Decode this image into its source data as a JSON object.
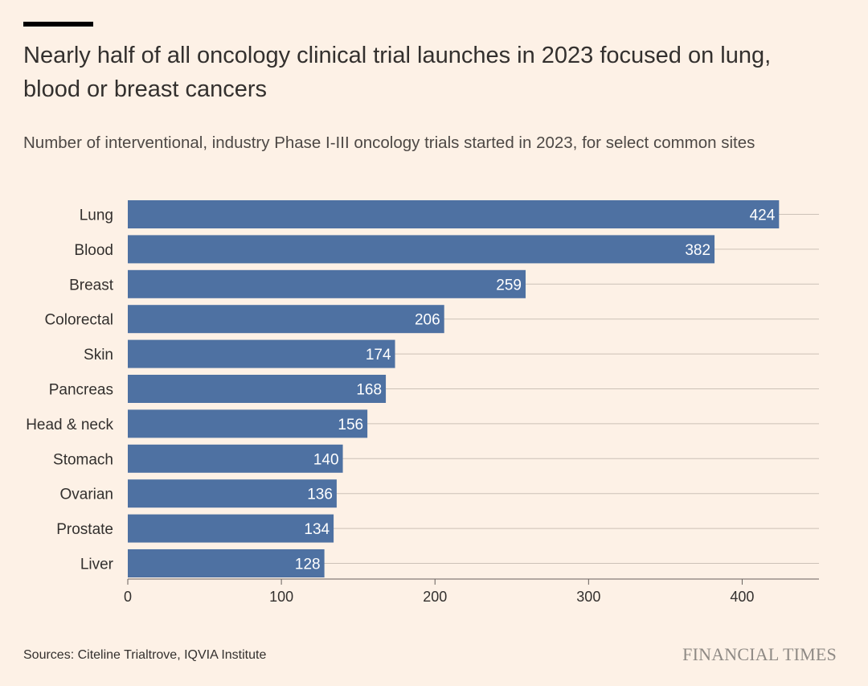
{
  "header": {
    "title": "Nearly half of all oncology clinical trial launches in 2023 focused on lung, blood or breast cancers",
    "subtitle": "Number of interventional, industry Phase I-III oncology trials started in 2023, for select common sites"
  },
  "footer": {
    "source": "Sources: Citeline Trialtrove, IQVIA Institute",
    "brand": "FINANCIAL TIMES"
  },
  "colors": {
    "bar": "#4e71a2",
    "gridline": "#ccc1b7",
    "background": "#fdf1e6",
    "label_on_bar": "#ffffff"
  },
  "chart_data": {
    "type": "bar",
    "orientation": "horizontal",
    "categories": [
      "Lung",
      "Blood",
      "Breast",
      "Colorectal",
      "Skin",
      "Pancreas",
      "Head & neck",
      "Stomach",
      "Ovarian",
      "Prostate",
      "Liver"
    ],
    "values": [
      424,
      382,
      259,
      206,
      174,
      168,
      156,
      140,
      136,
      134,
      128
    ],
    "xlim": [
      0,
      450
    ],
    "xticks": [
      0,
      100,
      200,
      300,
      400
    ],
    "grid": true,
    "legend": "none",
    "data_labels": "inside-end"
  }
}
